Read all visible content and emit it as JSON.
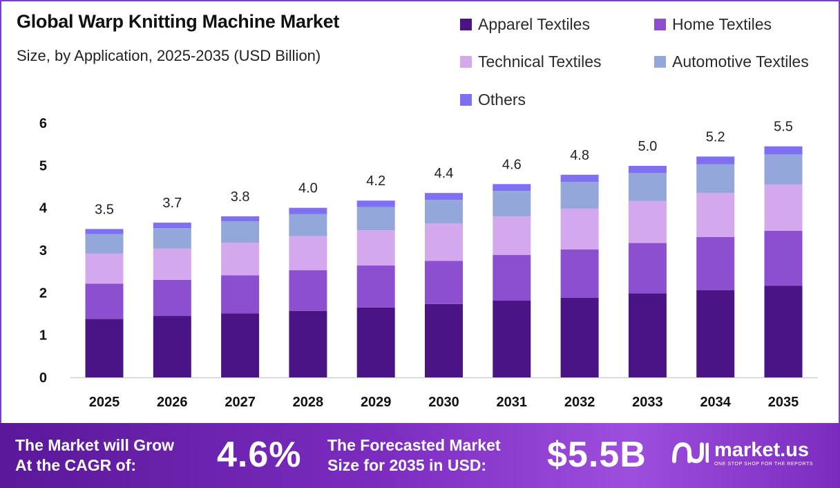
{
  "header": {
    "title": "Global Warp Knitting Machine Market",
    "subtitle": "Size, by Application, 2025-2035 (USD Billion)"
  },
  "chart_data": {
    "type": "bar",
    "stacked": true,
    "categories": [
      "2025",
      "2026",
      "2027",
      "2028",
      "2029",
      "2030",
      "2031",
      "2032",
      "2033",
      "2034",
      "2035"
    ],
    "series": [
      {
        "name": "Apparel Textiles",
        "color": "#4b1485",
        "values": [
          1.38,
          1.45,
          1.51,
          1.57,
          1.65,
          1.73,
          1.81,
          1.88,
          1.98,
          2.06,
          2.16
        ]
      },
      {
        "name": "Home Textiles",
        "color": "#8b4fd0",
        "values": [
          0.83,
          0.85,
          0.9,
          0.96,
          0.99,
          1.02,
          1.08,
          1.14,
          1.19,
          1.25,
          1.3
        ]
      },
      {
        "name": "Technical Textiles",
        "color": "#d3a8ec",
        "values": [
          0.71,
          0.74,
          0.77,
          0.8,
          0.83,
          0.88,
          0.91,
          0.96,
          0.99,
          1.04,
          1.09
        ]
      },
      {
        "name": "Automotive Textiles",
        "color": "#93a7db",
        "values": [
          0.46,
          0.48,
          0.5,
          0.52,
          0.55,
          0.56,
          0.6,
          0.63,
          0.66,
          0.68,
          0.71
        ]
      },
      {
        "name": "Others",
        "color": "#7e6ff3",
        "values": [
          0.12,
          0.13,
          0.12,
          0.15,
          0.15,
          0.16,
          0.16,
          0.17,
          0.17,
          0.18,
          0.19
        ]
      }
    ],
    "totals": [
      "3.5",
      "3.7",
      "3.8",
      "4.0",
      "4.2",
      "4.4",
      "4.6",
      "4.8",
      "5.0",
      "5.2",
      "5.5"
    ],
    "y_ticks": [
      "0",
      "1",
      "2",
      "3",
      "4",
      "5",
      "6"
    ],
    "ylim": [
      0,
      6
    ],
    "grid": false,
    "legend_position": "top-right"
  },
  "footer": {
    "cagr_label_line1": "The Market will Grow",
    "cagr_label_line2": "At the CAGR of:",
    "cagr_value": "4.6%",
    "forecast_label_line1": "The Forecasted Market",
    "forecast_label_line2": "Size for 2035 in USD:",
    "forecast_value": "$5.5B",
    "brand_name": "market.us",
    "brand_tagline": "ONE STOP SHOP FOR THE REPORTS",
    "brand_icon": "market-us-logo-icon"
  }
}
